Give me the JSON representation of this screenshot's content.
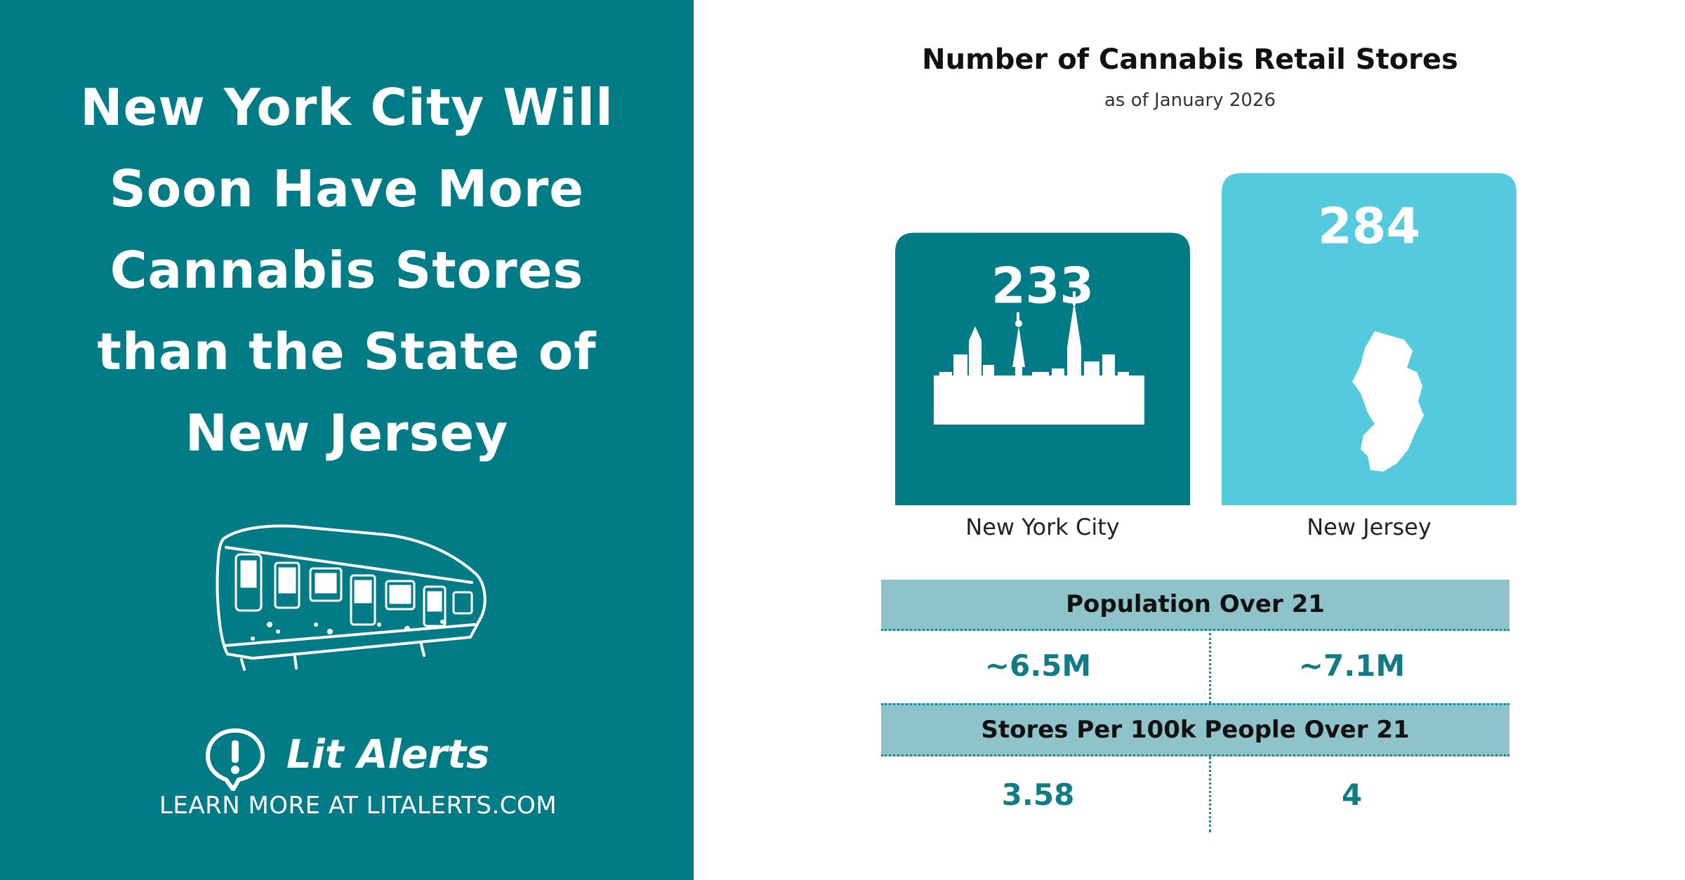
{
  "colors": {
    "teal": "#017b86",
    "light_teal": "#55cade",
    "band": "#8fc3ca",
    "value_text": "#127c86",
    "white": "#ffffff"
  },
  "left": {
    "headline_lines": [
      "New York City Will",
      "Soon Have More",
      "Cannabis Stores",
      "than the State of",
      "New Jersey"
    ],
    "subway_icon": "subway-car-illustration",
    "brand_icon": "speech-bubble-exclamation-icon",
    "brand_name": "Lit Alerts",
    "learn_more": "LEARN MORE AT LITALERTS.COM"
  },
  "chart_data": {
    "type": "bar",
    "title": "Number of Cannabis Retail Stores",
    "subtitle": "as of January 2026",
    "categories": [
      "New York City",
      "New Jersey"
    ],
    "values": [
      233,
      284
    ],
    "colors": [
      "#017b86",
      "#55cade"
    ],
    "icons": [
      "nyc-skyline-icon",
      "new-jersey-map-icon"
    ],
    "value_labels": [
      "233",
      "284"
    ]
  },
  "stats": {
    "population_label": "Population Over 21",
    "population_nyc": "~6.5M",
    "population_nj": "~7.1M",
    "rate_label": "Stores Per 100k People Over 21",
    "rate_nyc": "3.58",
    "rate_nj": "4"
  }
}
